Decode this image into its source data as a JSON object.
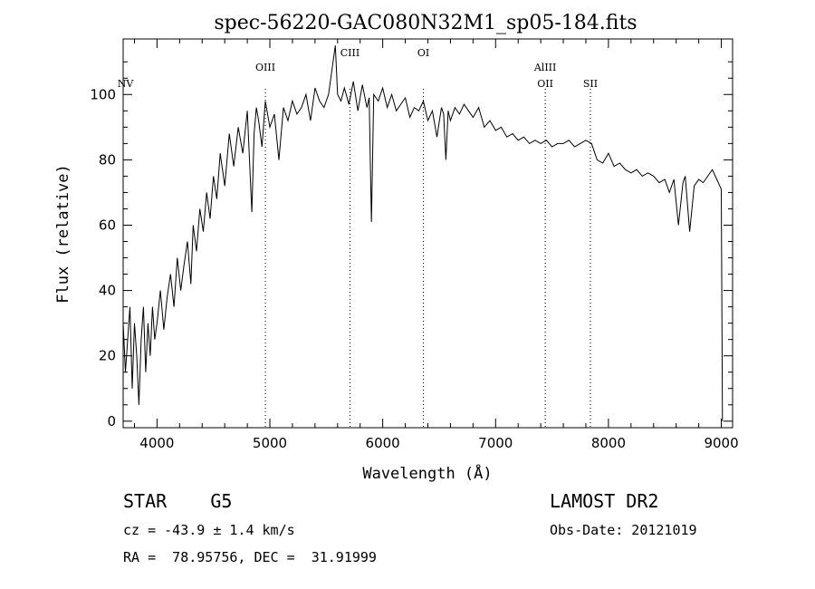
{
  "chart_data": {
    "type": "line",
    "title": "spec-56220-GAC080N32M1_sp05-184.fits",
    "xlabel": "Wavelength (Å)",
    "ylabel": "Flux (relative)",
    "xlim": [
      3700,
      9100
    ],
    "ylim": [
      -2,
      117
    ],
    "xticks": [
      4000,
      5000,
      6000,
      7000,
      8000,
      9000
    ],
    "yticks": [
      0,
      20,
      40,
      60,
      80,
      100
    ],
    "grid": false,
    "series": [
      {
        "x": [
          3700,
          3720,
          3740,
          3760,
          3780,
          3800,
          3820,
          3840,
          3860,
          3880,
          3900,
          3920,
          3940,
          3960,
          3980,
          4000,
          4030,
          4060,
          4090,
          4120,
          4150,
          4180,
          4210,
          4240,
          4270,
          4300,
          4320,
          4350,
          4380,
          4410,
          4440,
          4470,
          4500,
          4530,
          4560,
          4600,
          4640,
          4680,
          4720,
          4760,
          4800,
          4840,
          4860,
          4880,
          4900,
          4930,
          4960,
          5000,
          5040,
          5080,
          5120,
          5160,
          5200,
          5240,
          5280,
          5320,
          5360,
          5400,
          5440,
          5480,
          5520,
          5560,
          5580,
          5600,
          5630,
          5660,
          5700,
          5740,
          5780,
          5820,
          5860,
          5880,
          5890,
          5900,
          5920,
          5960,
          6000,
          6040,
          6080,
          6120,
          6160,
          6200,
          6240,
          6280,
          6320,
          6360,
          6400,
          6440,
          6480,
          6520,
          6540,
          6560,
          6580,
          6600,
          6640,
          6680,
          6720,
          6760,
          6800,
          6850,
          6900,
          6950,
          7000,
          7050,
          7100,
          7150,
          7200,
          7250,
          7300,
          7350,
          7400,
          7450,
          7500,
          7550,
          7600,
          7650,
          7700,
          7750,
          7800,
          7850,
          7900,
          7950,
          8000,
          8050,
          8100,
          8150,
          8200,
          8250,
          8300,
          8350,
          8400,
          8450,
          8500,
          8540,
          8560,
          8580,
          8620,
          8660,
          8680,
          8720,
          8760,
          8800,
          8840,
          8880,
          8920,
          8960,
          9000,
          9010
        ],
        "y": [
          30,
          15,
          25,
          35,
          10,
          30,
          20,
          5,
          25,
          35,
          15,
          30,
          20,
          35,
          25,
          30,
          40,
          28,
          38,
          45,
          35,
          50,
          40,
          48,
          55,
          42,
          60,
          52,
          65,
          58,
          70,
          62,
          75,
          68,
          82,
          72,
          88,
          78,
          90,
          82,
          95,
          64,
          88,
          96,
          92,
          84,
          98,
          90,
          94,
          80,
          96,
          92,
          98,
          94,
          96,
          100,
          92,
          102,
          98,
          96,
          100,
          110,
          115,
          100,
          98,
          102,
          97,
          104,
          95,
          103,
          96,
          99,
          80,
          61,
          100,
          98,
          102,
          96,
          100,
          95,
          97,
          99,
          93,
          96,
          95,
          98,
          92,
          95,
          87,
          96,
          94,
          80,
          95,
          92,
          96,
          94,
          97,
          95,
          93,
          96,
          90,
          92,
          89,
          90,
          87,
          88,
          86,
          87,
          85,
          86,
          85,
          86,
          84,
          85,
          85,
          86,
          84,
          85,
          86,
          85,
          80,
          79,
          82,
          78,
          79,
          77,
          76,
          77,
          75,
          76,
          75,
          73,
          74,
          70,
          72,
          74,
          60,
          73,
          75,
          58,
          72,
          74,
          73,
          75,
          77,
          74,
          71,
          0
        ],
        "line_labels": [
          {
            "text": "NV",
            "wavelength": 3720
          },
          {
            "text": "OIII",
            "wavelength": 4960
          },
          {
            "text": "CIII",
            "wavelength": 5710
          },
          {
            "text": "OI",
            "wavelength": 6360
          },
          {
            "text": "AlIII",
            "wavelength": 7440
          },
          {
            "text": "OII",
            "wavelength": 7440
          },
          {
            "text": "SII",
            "wavelength": 7840
          }
        ]
      }
    ]
  },
  "footer": {
    "left_big": "STAR    G5",
    "left_small_1": "cz = -43.9 ± 1.4 km/s",
    "left_small_2": "RA =  78.95756, DEC =  31.91999",
    "right_big": "LAMOST DR2",
    "right_small": "Obs-Date: 20121019"
  }
}
